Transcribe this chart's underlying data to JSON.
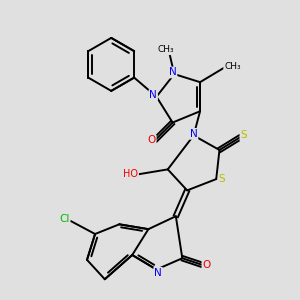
{
  "bg_color": "#e0e0e0",
  "bond_color": "#000000",
  "bond_width": 1.4,
  "atom_colors": {
    "N": "#0000ee",
    "O": "#ee0000",
    "S": "#bbbb00",
    "Cl": "#00bb00",
    "C": "#000000",
    "H": "#000000"
  },
  "font_size": 7.5,
  "fig_width": 3.0,
  "fig_height": 3.0,
  "xlim": [
    0.5,
    8.5
  ],
  "ylim": [
    0.3,
    9.5
  ]
}
